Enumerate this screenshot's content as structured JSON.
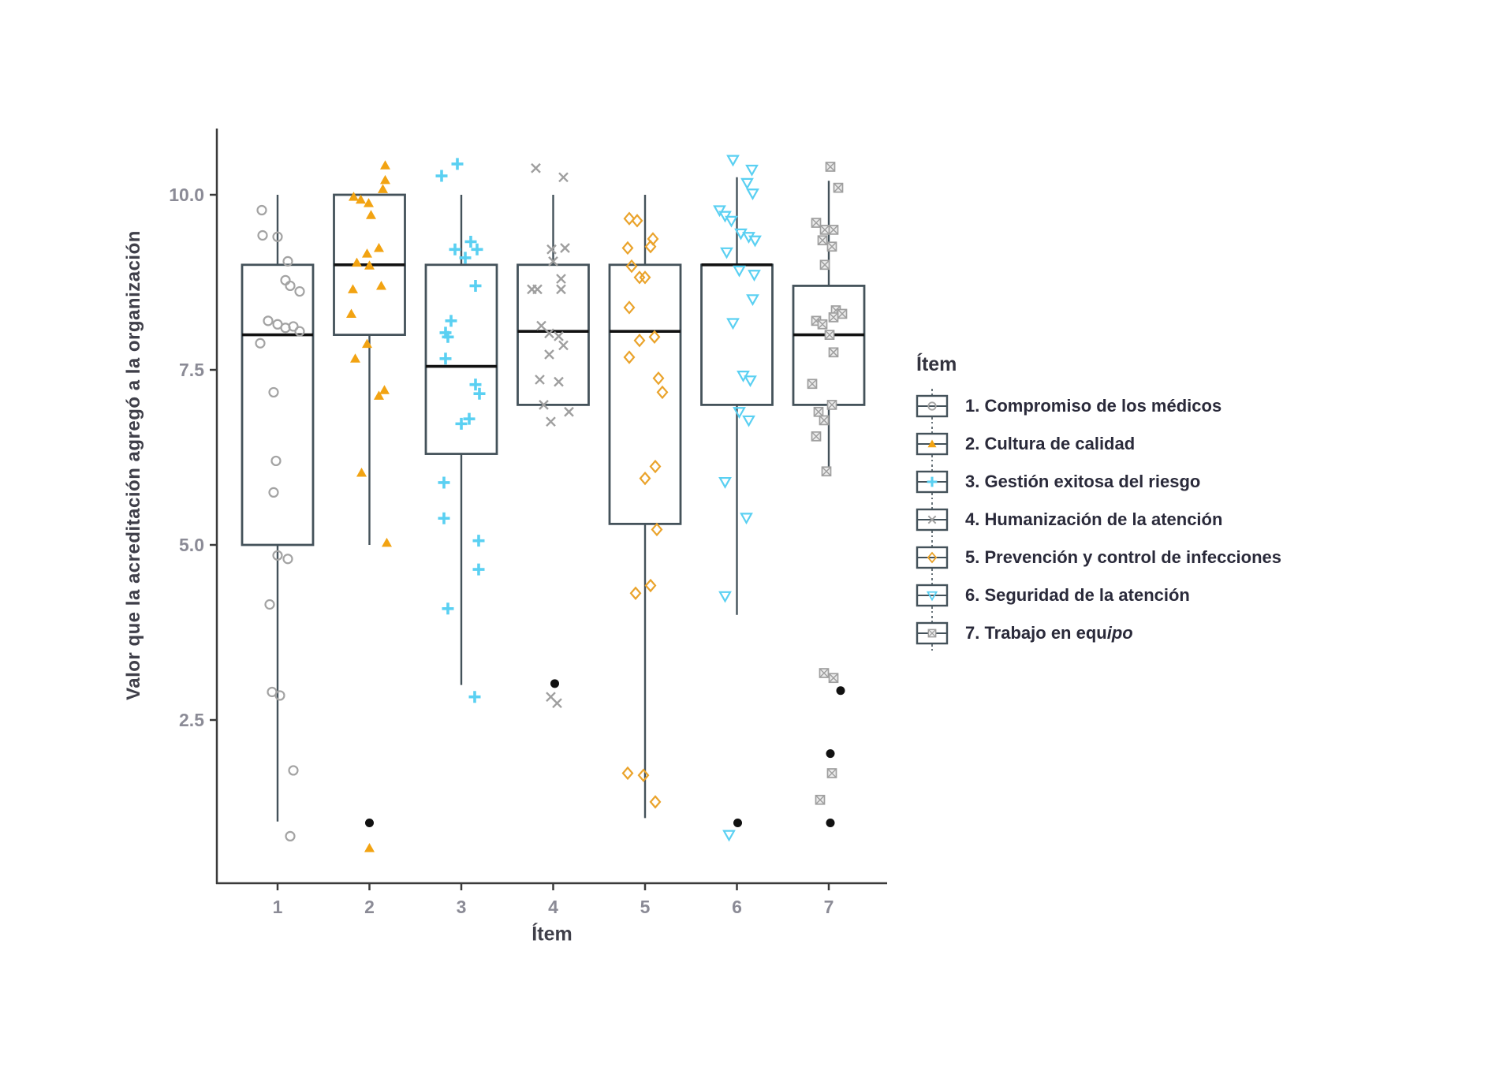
{
  "chart_data": {
    "type": "boxplot",
    "title": "",
    "xlabel": "Ítem",
    "ylabel": "Valor que la acreditación agregó a la organización",
    "legend_title": "Ítem",
    "ylim": [
      0.2,
      10.95
    ],
    "y_ticks": [
      "10.0",
      "7.5",
      "5.0",
      "2.5"
    ],
    "y_tick_values": [
      10.0,
      7.5,
      5.0,
      2.5
    ],
    "grid": "off",
    "legend_position": "right",
    "colors": {
      "gray_marker": "#a3a3a3",
      "orange_marker": "#f2a312",
      "cyan_marker": "#5ad0f2",
      "box_stroke": "#44525a",
      "median_stroke": "#111111",
      "outlier_fill": "#111111",
      "axis_line": "#3a3a3a",
      "tick_label": "#8b8b96",
      "axis_title": "#3f3f49",
      "legend_text": "#2a2a3a"
    },
    "series": [
      {
        "x_tick": "1",
        "label": "1. Compromiso de los médicos",
        "label_italic": "",
        "marker": "circle-open",
        "color": "#a3a3a3",
        "box": {
          "whisker_low": 1.05,
          "q1": 5.0,
          "median": 8.0,
          "q3": 9.0,
          "whisker_high": 10.0
        },
        "points": [
          [
            -20,
            9.78
          ],
          [
            -19,
            9.42
          ],
          [
            0,
            9.4
          ],
          [
            13,
            9.05
          ],
          [
            10,
            8.78
          ],
          [
            16,
            8.7
          ],
          [
            28,
            8.62
          ],
          [
            -12,
            8.2
          ],
          [
            0,
            8.15
          ],
          [
            10,
            8.1
          ],
          [
            20,
            8.12
          ],
          [
            28,
            8.05
          ],
          [
            -22,
            7.88
          ],
          [
            -5,
            7.18
          ],
          [
            -2,
            6.2
          ],
          [
            -5,
            5.75
          ],
          [
            0,
            4.85
          ],
          [
            13,
            4.8
          ],
          [
            -10,
            4.15
          ],
          [
            -7,
            2.9
          ],
          [
            3,
            2.85
          ],
          [
            20,
            1.78
          ],
          [
            16,
            0.84
          ]
        ],
        "outliers": []
      },
      {
        "x_tick": "2",
        "label": "2. Cultura de calidad",
        "label_italic": "",
        "marker": "triangle-filled",
        "color": "#f2a312",
        "box": {
          "whisker_low": 5.0,
          "q1": 8.0,
          "median": 9.0,
          "q3": 10.0,
          "whisker_high": 10.0
        },
        "points": [
          [
            20,
            10.42
          ],
          [
            20,
            10.21
          ],
          [
            17,
            10.08
          ],
          [
            -20,
            9.97
          ],
          [
            -11,
            9.93
          ],
          [
            -1,
            9.88
          ],
          [
            2,
            9.71
          ],
          [
            12,
            9.24
          ],
          [
            -3,
            9.16
          ],
          [
            -16,
            9.03
          ],
          [
            0,
            8.99
          ],
          [
            15,
            8.7
          ],
          [
            -21,
            8.65
          ],
          [
            -23,
            8.3
          ],
          [
            -3,
            7.87
          ],
          [
            -18,
            7.66
          ],
          [
            19,
            7.21
          ],
          [
            12,
            7.13
          ],
          [
            -10,
            6.03
          ],
          [
            22,
            5.03
          ],
          [
            0,
            0.67
          ]
        ],
        "outliers": [
          [
            0,
            1.03
          ]
        ]
      },
      {
        "x_tick": "3",
        "label": "3. Gestión exitosa del riesgo",
        "label_italic": "",
        "marker": "plus",
        "color": "#5ad0f2",
        "box": {
          "whisker_low": 3.0,
          "q1": 6.3,
          "median": 7.55,
          "q3": 9.0,
          "whisker_high": 10.0
        },
        "points": [
          [
            -5,
            10.44
          ],
          [
            -25,
            10.27
          ],
          [
            12,
            9.33
          ],
          [
            -8,
            9.22
          ],
          [
            20,
            9.22
          ],
          [
            5,
            9.1
          ],
          [
            18,
            8.7
          ],
          [
            -13,
            8.2
          ],
          [
            -20,
            8.03
          ],
          [
            -17,
            7.97
          ],
          [
            -20,
            7.66
          ],
          [
            18,
            7.29
          ],
          [
            23,
            7.16
          ],
          [
            10,
            6.8
          ],
          [
            0,
            6.73
          ],
          [
            -22,
            5.89
          ],
          [
            -22,
            5.38
          ],
          [
            22,
            5.06
          ],
          [
            22,
            4.65
          ],
          [
            -17,
            4.09
          ],
          [
            17,
            2.83
          ]
        ],
        "outliers": []
      },
      {
        "x_tick": "4",
        "label": "4. Humanización de la atención",
        "label_italic": "",
        "marker": "x-mark",
        "color": "#9f9f9f",
        "box": {
          "whisker_low": 7.0,
          "q1": 7.0,
          "median": 8.05,
          "q3": 9.0,
          "whisker_high": 10.0
        },
        "points": [
          [
            -22,
            10.38
          ],
          [
            13,
            10.25
          ],
          [
            15,
            9.24
          ],
          [
            -2,
            9.22
          ],
          [
            0,
            9.05
          ],
          [
            10,
            8.8
          ],
          [
            -27,
            8.65
          ],
          [
            -20,
            8.65
          ],
          [
            10,
            8.65
          ],
          [
            -15,
            8.13
          ],
          [
            -5,
            8.02
          ],
          [
            7,
            7.98
          ],
          [
            13,
            7.85
          ],
          [
            -5,
            7.72
          ],
          [
            -17,
            7.36
          ],
          [
            7,
            7.33
          ],
          [
            -12,
            7.0
          ],
          [
            20,
            6.9
          ],
          [
            -3,
            6.76
          ],
          [
            -3,
            2.83
          ],
          [
            5,
            2.74
          ]
        ],
        "outliers": [
          [
            2,
            3.02
          ]
        ]
      },
      {
        "x_tick": "5",
        "label": "5. Prevención y control de infecciones",
        "label_italic": "",
        "marker": "diamond-open",
        "color": "#eaa32b",
        "box": {
          "whisker_low": 1.1,
          "q1": 5.3,
          "median": 8.05,
          "q3": 9.0,
          "whisker_high": 10.0
        },
        "points": [
          [
            -20,
            9.66
          ],
          [
            -10,
            9.63
          ],
          [
            10,
            9.37
          ],
          [
            7,
            9.26
          ],
          [
            -22,
            9.24
          ],
          [
            -17,
            8.98
          ],
          [
            -7,
            8.82
          ],
          [
            0,
            8.82
          ],
          [
            -20,
            8.39
          ],
          [
            12,
            7.97
          ],
          [
            -7,
            7.92
          ],
          [
            -20,
            7.68
          ],
          [
            17,
            7.38
          ],
          [
            22,
            7.18
          ],
          [
            13,
            6.12
          ],
          [
            0,
            5.95
          ],
          [
            15,
            5.22
          ],
          [
            7,
            4.42
          ],
          [
            -12,
            4.31
          ],
          [
            -22,
            1.74
          ],
          [
            -2,
            1.71
          ],
          [
            13,
            1.33
          ]
        ],
        "outliers": []
      },
      {
        "x_tick": "6",
        "label": "6. Seguridad de la atención",
        "label_italic": "",
        "marker": "triangle-down-open",
        "color": "#5ad0f2",
        "box": {
          "whisker_low": 4.0,
          "q1": 7.0,
          "median": 9.0,
          "q3": 9.0,
          "whisker_high": 10.25
        },
        "points": [
          [
            -5,
            10.5
          ],
          [
            19,
            10.36
          ],
          [
            13,
            10.17
          ],
          [
            20,
            10.02
          ],
          [
            -22,
            9.78
          ],
          [
            -15,
            9.7
          ],
          [
            -7,
            9.63
          ],
          [
            5,
            9.45
          ],
          [
            15,
            9.4
          ],
          [
            23,
            9.35
          ],
          [
            -13,
            9.18
          ],
          [
            3,
            8.92
          ],
          [
            22,
            8.86
          ],
          [
            20,
            8.51
          ],
          [
            -5,
            8.17
          ],
          [
            8,
            7.42
          ],
          [
            17,
            7.35
          ],
          [
            3,
            6.9
          ],
          [
            15,
            6.78
          ],
          [
            -15,
            5.9
          ],
          [
            12,
            5.39
          ],
          [
            -15,
            4.27
          ],
          [
            -10,
            0.86
          ]
        ],
        "outliers": [
          [
            1,
            1.03
          ]
        ]
      },
      {
        "x_tick": "7",
        "label": "7. Trabajo en equ",
        "label_italic": "ipo",
        "marker": "square-cross",
        "color": "#9f9f9f",
        "box": {
          "whisker_low": 6.0,
          "q1": 7.0,
          "median": 8.0,
          "q3": 8.7,
          "whisker_high": 10.2
        },
        "points": [
          [
            2,
            10.4
          ],
          [
            12,
            10.1
          ],
          [
            -16,
            9.6
          ],
          [
            -5,
            9.5
          ],
          [
            6,
            9.5
          ],
          [
            -8,
            9.35
          ],
          [
            4,
            9.26
          ],
          [
            -5,
            9.0
          ],
          [
            9,
            8.35
          ],
          [
            17,
            8.3
          ],
          [
            6,
            8.25
          ],
          [
            -16,
            8.2
          ],
          [
            -8,
            8.15
          ],
          [
            1,
            8.0
          ],
          [
            6,
            7.75
          ],
          [
            -21,
            7.3
          ],
          [
            4,
            7.0
          ],
          [
            -13,
            6.9
          ],
          [
            -6,
            6.78
          ],
          [
            -16,
            6.55
          ],
          [
            -3,
            6.05
          ],
          [
            -6,
            3.17
          ],
          [
            6,
            3.1
          ],
          [
            4,
            1.74
          ],
          [
            -11,
            1.36
          ]
        ],
        "outliers": [
          [
            15,
            2.92
          ],
          [
            2,
            2.02
          ],
          [
            2,
            1.03
          ]
        ]
      }
    ]
  }
}
